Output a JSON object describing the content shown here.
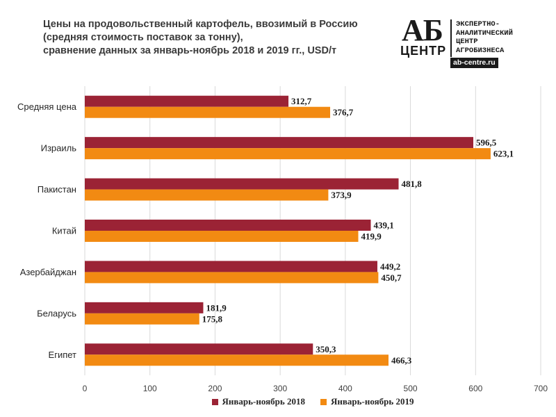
{
  "title": {
    "line1": "Цены на продовольственный картофель, ввозимый в Россию",
    "line2": "(средняя стоимость поставок за тонну),",
    "line3": "сравнение данных за январь-ноябрь 2018 и 2019 гг., USD/т"
  },
  "logo": {
    "ab": "АБ",
    "centr": "ЦЕНТР",
    "line1": "ЭКСПЕРТНО-",
    "line2": "АНАЛИТИЧЕСКИЙ",
    "line3": "ЦЕНТР",
    "line4": "АГРОБИЗНЕСА",
    "url": "ab-centre.ru"
  },
  "chart_data": {
    "type": "bar",
    "orientation": "horizontal",
    "categories": [
      "Средняя цена",
      "Израиль",
      "Пакистан",
      "Китай",
      "Азербайджан",
      "Беларусь",
      "Египет"
    ],
    "series": [
      {
        "name": "Январь-ноябрь 2018",
        "color": "#9b2335",
        "values": [
          312.7,
          596.5,
          481.8,
          439.1,
          449.2,
          181.9,
          350.3
        ]
      },
      {
        "name": "Январь-ноябрь 2019",
        "color": "#f28a12",
        "values": [
          376.7,
          623.1,
          373.9,
          419.9,
          450.7,
          175.8,
          466.3
        ]
      }
    ],
    "xlim": [
      0,
      700
    ],
    "xticks": [
      0,
      100,
      200,
      300,
      400,
      500,
      600,
      700
    ],
    "grid": true,
    "legend_position": "bottom"
  }
}
